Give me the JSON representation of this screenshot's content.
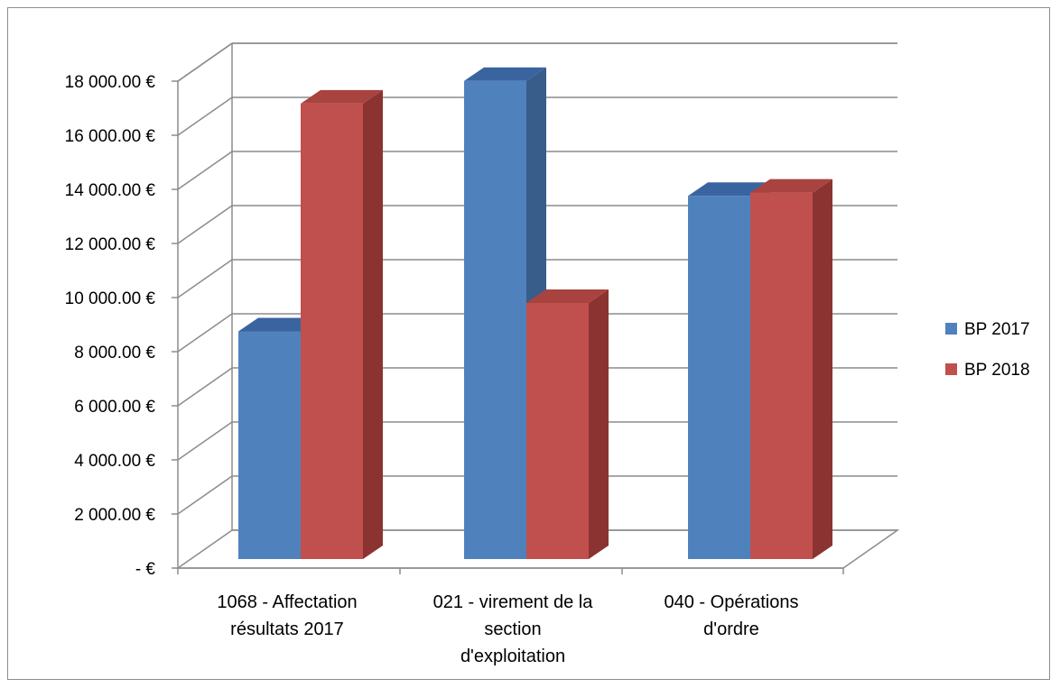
{
  "chart_data": {
    "type": "bar",
    "variant": "3d-clustered-column",
    "categories": [
      [
        "1068 - Affectation",
        "résultats 2017"
      ],
      [
        "021 - virement de la",
        "section",
        "d'exploitation"
      ],
      [
        "040 - Opérations",
        "d'ordre"
      ]
    ],
    "series": [
      {
        "name": "BP 2017",
        "values": [
          8750,
          18010,
          13760
        ],
        "color": "#4f81bd",
        "side_color": "#385d8a",
        "top_color": "#3a64a0"
      },
      {
        "name": "BP 2018",
        "values": [
          17170,
          9800,
          13880
        ],
        "color": "#c0504d",
        "side_color": "#8b3330",
        "top_color": "#a84340"
      }
    ],
    "ylim": [
      0,
      18000
    ],
    "yticks": [
      0,
      2000,
      4000,
      6000,
      8000,
      10000,
      12000,
      14000,
      16000,
      18000
    ],
    "ytick_labels": [
      "-  €",
      "2 000.00 €",
      "4 000.00 €",
      "6 000.00 €",
      "8 000.00 €",
      "10 000.00 €",
      "12 000.00 €",
      "14 000.00 €",
      "16 000.00 €",
      "18 000.00 €"
    ],
    "grid": true,
    "legend_position": "right"
  }
}
